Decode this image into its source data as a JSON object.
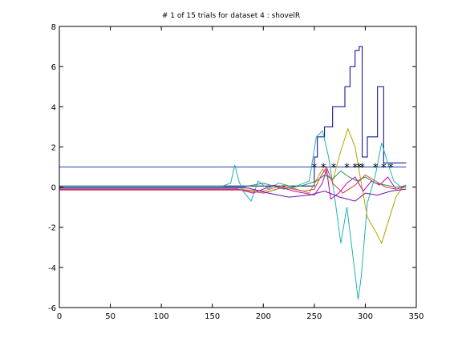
{
  "chart_data": {
    "type": "line",
    "title": "# 1 of 15 trials for dataset 4 : shovelR",
    "xlabel": "",
    "ylabel": "",
    "xlim": [
      0,
      350
    ],
    "ylim": [
      -6,
      8
    ],
    "xticks": [
      0,
      50,
      100,
      150,
      200,
      250,
      300,
      350
    ],
    "yticks": [
      -6,
      -4,
      -2,
      0,
      2,
      4,
      6,
      8
    ],
    "grid": false,
    "legend": "none",
    "series": [
      {
        "color": "#00008b",
        "x": [
          0,
          250,
          250,
          253,
          253,
          260,
          260,
          268,
          268,
          280,
          280,
          285,
          285,
          290,
          290,
          294,
          294,
          297,
          297,
          302,
          302,
          312,
          312,
          318,
          318,
          323,
          323,
          340
        ],
        "values": [
          0.05,
          0.05,
          1.5,
          1.5,
          2.5,
          2.5,
          3,
          3,
          4,
          4,
          5,
          5,
          6,
          6,
          6.8,
          6.8,
          7,
          7,
          1.5,
          1.5,
          2.5,
          2.5,
          5,
          5,
          1.2,
          1.2,
          1.2,
          1.2
        ]
      },
      {
        "color": "#1f3fb8",
        "x": [
          0,
          340
        ],
        "values": [
          1.0,
          1.0
        ]
      },
      {
        "color": "#20b2b2",
        "x": [
          0,
          160,
          168,
          172,
          176,
          180,
          188,
          195,
          205,
          215,
          230,
          245,
          252,
          258,
          264,
          270,
          276,
          282,
          288,
          293,
          296,
          302,
          310,
          316,
          322,
          328,
          335,
          340
        ],
        "values": [
          0.05,
          0.05,
          0.2,
          1.1,
          0.3,
          -0.2,
          -0.7,
          0.3,
          -0.1,
          0.2,
          0,
          0.3,
          2.5,
          2.8,
          1.5,
          -0.5,
          -2.8,
          -1.0,
          -3.5,
          -5.6,
          -4.5,
          -0.8,
          0.6,
          2.2,
          1.2,
          0.3,
          0.0,
          0.1
        ]
      },
      {
        "color": "#b8a000",
        "x": [
          0,
          180,
          200,
          220,
          245,
          258,
          268,
          276,
          283,
          290,
          295,
          302,
          310,
          316,
          322,
          330,
          338
        ],
        "values": [
          -0.12,
          -0.12,
          -0.2,
          0.1,
          -0.3,
          0.9,
          0.3,
          1.8,
          2.9,
          2.0,
          0.5,
          -1.5,
          -2.2,
          -2.8,
          -1.8,
          -0.5,
          0.1
        ]
      },
      {
        "color": "#c000c0",
        "x": [
          0,
          175,
          190,
          210,
          230,
          250,
          258,
          262,
          266,
          274,
          282,
          290,
          298,
          306,
          314,
          322,
          330,
          338
        ],
        "values": [
          -0.1,
          -0.1,
          -0.3,
          0.1,
          -0.2,
          -0.4,
          0.2,
          0.9,
          -0.6,
          -0.3,
          0.2,
          0.5,
          -0.2,
          0.3,
          0.1,
          0.5,
          -0.1,
          0.0
        ]
      },
      {
        "color": "#2e8b57",
        "x": [
          0,
          180,
          200,
          220,
          240,
          252,
          260,
          268,
          276,
          284,
          292,
          300,
          310,
          320,
          330,
          340
        ],
        "values": [
          0.0,
          0.0,
          0.2,
          -0.1,
          0.1,
          0.3,
          0.6,
          0.4,
          0.8,
          0.5,
          0.3,
          0.5,
          0.2,
          0.1,
          0.0,
          0.05
        ]
      },
      {
        "color": "#d23c3c",
        "x": [
          0,
          180,
          200,
          220,
          240,
          250,
          256,
          262,
          268,
          278,
          290,
          300,
          310,
          320,
          330,
          340
        ],
        "values": [
          -0.15,
          -0.15,
          -0.3,
          0.0,
          -0.2,
          -0.1,
          0.5,
          1.0,
          0.2,
          -0.3,
          0.1,
          0.6,
          0.3,
          0.0,
          -0.1,
          0.0
        ]
      },
      {
        "color": "#6a0dad",
        "x": [
          0,
          185,
          205,
          225,
          245,
          260,
          275,
          290,
          300,
          312,
          325,
          340
        ],
        "values": [
          -0.05,
          -0.05,
          -0.3,
          -0.5,
          -0.4,
          -0.2,
          -0.5,
          -0.7,
          -0.3,
          -0.4,
          -0.2,
          -0.1
        ]
      }
    ],
    "markers": {
      "symbol": "*",
      "y": 1.0,
      "x": [
        250,
        259,
        269,
        282,
        290,
        294,
        297,
        310,
        318,
        325
      ]
    }
  }
}
